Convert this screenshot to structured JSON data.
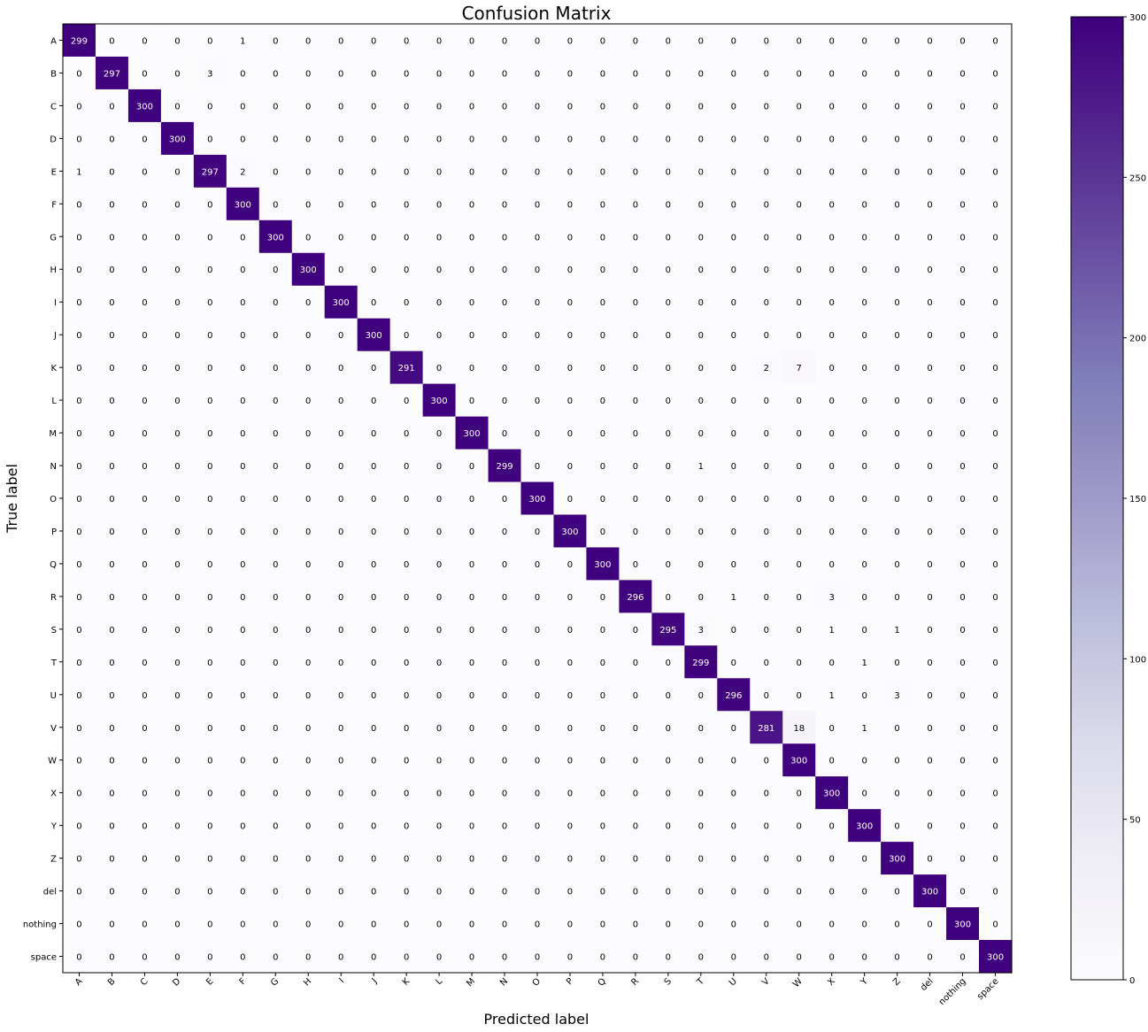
{
  "chart_data": {
    "type": "heatmap",
    "title": "Confusion Matrix",
    "xlabel": "Predicted label",
    "ylabel": "True label",
    "labels": [
      "A",
      "B",
      "C",
      "D",
      "E",
      "F",
      "G",
      "H",
      "I",
      "J",
      "K",
      "L",
      "M",
      "N",
      "O",
      "P",
      "Q",
      "R",
      "S",
      "T",
      "U",
      "V",
      "W",
      "X",
      "Y",
      "Z",
      "del",
      "nothing",
      "space"
    ],
    "colormap": "Purples",
    "color_low": "#fcfbfd",
    "color_high": "#3f007d",
    "text_dark": "#000000",
    "text_light": "#ffffff",
    "vmin": 0,
    "vmax": 300,
    "colorbar_ticks": [
      0,
      50,
      100,
      150,
      200,
      250,
      300
    ],
    "colorbar_tick_labels": [
      "0",
      "50",
      "100",
      "150",
      "200",
      "250",
      "300"
    ],
    "colorbar_position": "right",
    "grid": false,
    "off_diagonal": [
      {
        "row": 0,
        "col": 0,
        "value": 299
      },
      {
        "row": 0,
        "col": 5,
        "value": 1
      },
      {
        "row": 1,
        "col": 1,
        "value": 297
      },
      {
        "row": 1,
        "col": 4,
        "value": 3
      },
      {
        "row": 4,
        "col": 0,
        "value": 1
      },
      {
        "row": 4,
        "col": 4,
        "value": 297
      },
      {
        "row": 4,
        "col": 5,
        "value": 2
      },
      {
        "row": 10,
        "col": 10,
        "value": 291
      },
      {
        "row": 10,
        "col": 21,
        "value": 2
      },
      {
        "row": 10,
        "col": 22,
        "value": 7
      },
      {
        "row": 13,
        "col": 13,
        "value": 299
      },
      {
        "row": 13,
        "col": 19,
        "value": 1
      },
      {
        "row": 17,
        "col": 17,
        "value": 296
      },
      {
        "row": 17,
        "col": 20,
        "value": 1
      },
      {
        "row": 17,
        "col": 23,
        "value": 3
      },
      {
        "row": 18,
        "col": 18,
        "value": 295
      },
      {
        "row": 18,
        "col": 19,
        "value": 3
      },
      {
        "row": 18,
        "col": 23,
        "value": 1
      },
      {
        "row": 18,
        "col": 25,
        "value": 1
      },
      {
        "row": 19,
        "col": 19,
        "value": 299
      },
      {
        "row": 19,
        "col": 24,
        "value": 1
      },
      {
        "row": 20,
        "col": 20,
        "value": 296
      },
      {
        "row": 20,
        "col": 23,
        "value": 1
      },
      {
        "row": 20,
        "col": 25,
        "value": 3
      },
      {
        "row": 21,
        "col": 21,
        "value": 281
      },
      {
        "row": 21,
        "col": 22,
        "value": 18
      },
      {
        "row": 21,
        "col": 24,
        "value": 1
      }
    ],
    "default_diagonal_value": 300,
    "default_off_diagonal_value": 0
  }
}
